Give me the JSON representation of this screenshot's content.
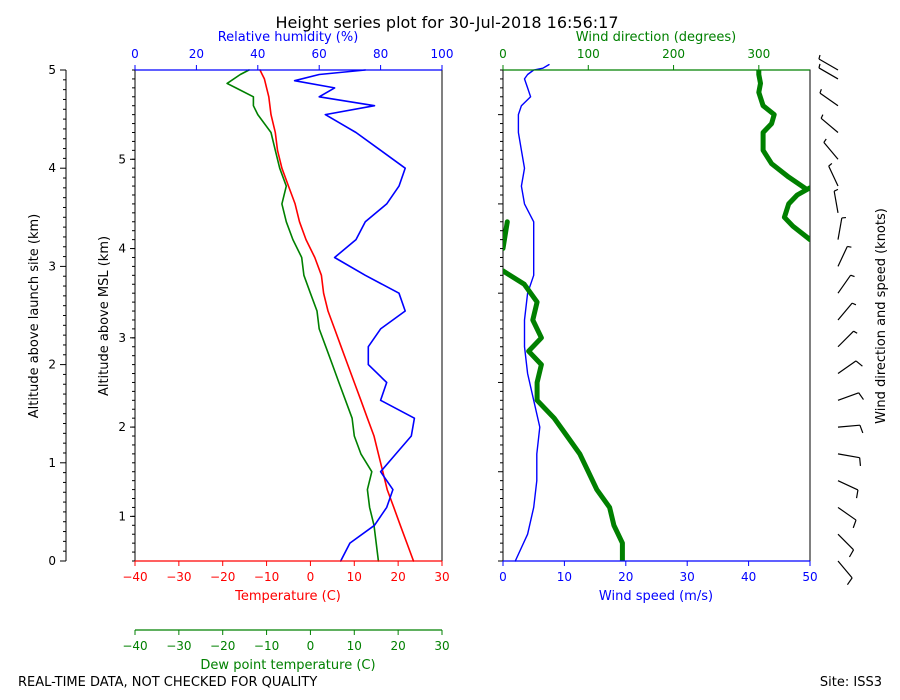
{
  "title": "Height series plot for 30-Jul-2018 16:56:17",
  "footer_left": "REAL-TIME DATA, NOT CHECKED FOR QUALITY",
  "footer_right": "Site: ISS3",
  "colors": {
    "temperature": "#ff0000",
    "dewpoint": "#008000",
    "humidity": "#0000ff",
    "wind_speed": "#0000ff",
    "wind_direction": "#008000",
    "axes": "#000000"
  },
  "chart_data": [
    {
      "type": "line",
      "axes": {
        "left_outer": {
          "label": "Altitude above launch site (km)",
          "ylim": [
            0,
            5
          ],
          "ticks": [
            "0",
            "1",
            "2",
            "3",
            "4",
            "5"
          ]
        },
        "left_inner": {
          "label": "Altitude above MSL (km)",
          "ylim": [
            0.5,
            5.5
          ],
          "ticks": [
            "1",
            "2",
            "3",
            "4",
            "5"
          ]
        },
        "bottom": {
          "label": "Temperature (C)",
          "xlim": [
            -40,
            30
          ],
          "ticks": [
            "−40",
            "−30",
            "−20",
            "−10",
            "0",
            "10",
            "20",
            "30"
          ]
        },
        "bottom2": {
          "label": "Dew point temperature (C)",
          "xlim": [
            -40,
            30
          ],
          "ticks": [
            "−40",
            "−30",
            "−20",
            "−10",
            "0",
            "10",
            "20",
            "30"
          ]
        },
        "top": {
          "label": "Relative humidity (%)",
          "xlim": [
            0,
            100
          ],
          "ticks": [
            "0",
            "20",
            "40",
            "60",
            "80",
            "100"
          ]
        }
      },
      "series": [
        {
          "key": "temperature",
          "x": [
            23.5,
            22,
            20.5,
            19,
            17.5,
            16.5,
            15.5,
            14.5,
            13,
            11.5,
            10,
            8.5,
            7,
            5.5,
            4,
            3,
            2.5,
            1,
            -1,
            -2.5,
            -3.5,
            -5,
            -6.5,
            -7.5,
            -8,
            -9,
            -9.5,
            -10,
            -10.5,
            -11,
            -11.5
          ],
          "y": [
            0,
            0.2,
            0.4,
            0.6,
            0.8,
            1.0,
            1.2,
            1.4,
            1.6,
            1.8,
            2.0,
            2.2,
            2.4,
            2.6,
            2.8,
            3.0,
            3.2,
            3.4,
            3.6,
            3.8,
            4.0,
            4.2,
            4.4,
            4.6,
            4.8,
            5.0,
            5.2,
            5.3,
            5.4,
            5.45,
            5.5
          ]
        },
        {
          "key": "dewpoint",
          "x": [
            15.5,
            15,
            14.5,
            13.5,
            13,
            14,
            11.5,
            10,
            9.5,
            8,
            6.5,
            5,
            3.5,
            2,
            1.5,
            0,
            -1.5,
            -2,
            -4,
            -5.5,
            -6.5,
            -5.5,
            -7,
            -8,
            -9,
            -12,
            -13,
            -13,
            -17,
            -19,
            -16,
            -14
          ],
          "y": [
            0,
            0.2,
            0.4,
            0.6,
            0.8,
            1.0,
            1.2,
            1.4,
            1.6,
            1.8,
            2.0,
            2.2,
            2.4,
            2.6,
            2.8,
            3.0,
            3.2,
            3.4,
            3.6,
            3.8,
            4.0,
            4.2,
            4.4,
            4.6,
            4.8,
            5.0,
            5.1,
            5.2,
            5.3,
            5.35,
            5.45,
            5.5
          ]
        },
        {
          "key": "humidity",
          "x": [
            67,
            70,
            78,
            82,
            84,
            80,
            85,
            90,
            91,
            80,
            82,
            76,
            76,
            80,
            88,
            86,
            75,
            65,
            72,
            75,
            82,
            86,
            88,
            80,
            72,
            62,
            78,
            60,
            65,
            52,
            60,
            75
          ],
          "y": [
            0,
            0.2,
            0.4,
            0.6,
            0.8,
            1.0,
            1.2,
            1.4,
            1.6,
            1.8,
            2.0,
            2.2,
            2.4,
            2.6,
            2.8,
            3.0,
            3.2,
            3.4,
            3.6,
            3.8,
            4.0,
            4.2,
            4.4,
            4.6,
            4.8,
            5.0,
            5.1,
            5.2,
            5.3,
            5.38,
            5.45,
            5.5
          ]
        }
      ]
    },
    {
      "type": "line",
      "axes": {
        "bottom": {
          "label": "Wind speed (m/s)",
          "xlim": [
            0,
            50
          ],
          "ticks": [
            "0",
            "10",
            "20",
            "30",
            "40",
            "50"
          ]
        },
        "top": {
          "label": "Wind direction (degrees)",
          "xlim": [
            0,
            360
          ],
          "ticks": [
            "0",
            "100",
            "200",
            "300"
          ]
        }
      },
      "series": [
        {
          "key": "wind_speed",
          "x": [
            2,
            4,
            5,
            5.5,
            5.5,
            6,
            5,
            4,
            3.5,
            3.5,
            4,
            5,
            5,
            5,
            5,
            3.5,
            3,
            3.5,
            3,
            2.5,
            2.5,
            3,
            4.5,
            4,
            3.5,
            4,
            5,
            6.5,
            7,
            7.5
          ],
          "y": [
            0,
            0.3,
            0.6,
            0.9,
            1.2,
            1.5,
            1.8,
            2.1,
            2.4,
            2.7,
            3.0,
            3.2,
            3.4,
            3.6,
            3.8,
            4.0,
            4.2,
            4.4,
            4.6,
            4.8,
            5.0,
            5.1,
            5.2,
            5.3,
            5.4,
            5.45,
            5.5,
            5.52,
            5.54,
            5.56
          ]
        },
        {
          "key": "wind_direction",
          "x": [
            140,
            140,
            130,
            125,
            110,
            100,
            90,
            75,
            60,
            40,
            40,
            45,
            30,
            45,
            35,
            40,
            25,
            0,
            360,
            340,
            340,
            330,
            335,
            350,
            360
          ],
          "y": [
            0,
            0.2,
            0.4,
            0.6,
            0.8,
            1.0,
            1.2,
            1.4,
            1.6,
            1.8,
            2.0,
            2.2,
            2.35,
            2.5,
            2.7,
            2.9,
            3.1,
            3.25,
            3.3,
            3.5,
            3.7,
            3.9,
            4.1,
            4.3,
            4.5
          ]
        }
      ],
      "wind_direction_segments": [
        {
          "x": [
            5,
            0
          ],
          "y": [
            3.8,
            3.5
          ]
        },
        {
          "x": [
            360,
            340,
            330,
            335,
            345,
            360
          ],
          "y": [
            3.6,
            3.75,
            3.85,
            4.0,
            4.1,
            4.18
          ]
        },
        {
          "x": [
            355,
            335,
            315,
            305,
            305,
            315,
            318,
            305,
            300,
            302,
            300,
            300
          ],
          "y": [
            4.17,
            4.3,
            4.45,
            4.6,
            4.8,
            4.9,
            5.0,
            5.1,
            5.25,
            5.35,
            5.45,
            5.5
          ]
        }
      ]
    },
    {
      "type": "scatter",
      "label": "Wind direction and speed (knots)",
      "barbs": {
        "y": [
          0,
          0.3,
          0.6,
          0.9,
          1.2,
          1.5,
          1.8,
          2.1,
          2.4,
          2.7,
          3.0,
          3.3,
          3.6,
          3.9,
          4.2,
          4.5,
          4.8,
          5.1,
          5.4,
          5.5
        ],
        "dir": [
          140,
          135,
          125,
          115,
          100,
          85,
          70,
          55,
          45,
          40,
          35,
          25,
          10,
          350,
          335,
          320,
          310,
          305,
          300,
          300
        ],
        "speed_kt": [
          10,
          12,
          13,
          12,
          12,
          11,
          10,
          10,
          9,
          9,
          8,
          8,
          8,
          7,
          7,
          6,
          6,
          5,
          5,
          5
        ]
      }
    }
  ]
}
